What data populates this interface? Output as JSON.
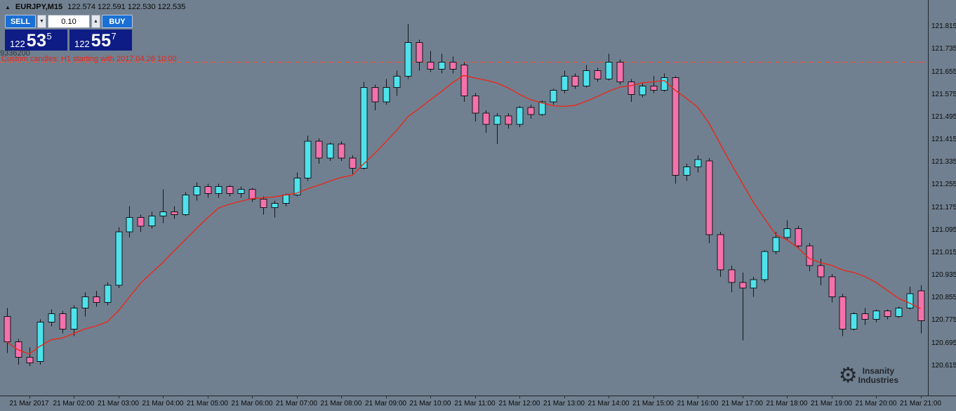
{
  "app": {
    "background": "#708090"
  },
  "header": {
    "icon_glyph": "▲",
    "symbol": "EURJPY,M15",
    "ohlc": "122.574 122.591 122.530 122.535"
  },
  "trade_panel": {
    "sell_label": "SELL",
    "buy_label": "BUY",
    "lot_size": "0.10",
    "spinner_down_icon": "▼",
    "spinner_up_icon": "▲",
    "sell_price": {
      "prefix": "122",
      "big": "53",
      "sup": "5"
    },
    "buy_price": {
      "prefix": "122",
      "big": "55",
      "sup": "7"
    }
  },
  "annotations": {
    "account_number": "9336200",
    "custom_candles_note": "Custom candles: H1 starting with 2017.04.26 10:00",
    "watermark_icon": "⚙",
    "watermark_line1": "Insanity",
    "watermark_line2": "Industries"
  },
  "chart_data": {
    "type": "candlestick",
    "symbol": "EURJPY",
    "timeframe": "M15",
    "ylim": [
      120.51,
      121.91
    ],
    "grid": false,
    "colors": {
      "up": "#4EE2EC",
      "down": "#F571AB",
      "wick": "#15161a"
    },
    "ma": {
      "period": 10,
      "color": "#e8291c"
    },
    "hline": {
      "price": 121.69,
      "color": "#ff5030",
      "style": "dashed"
    },
    "price_axis_labels": [
      "121.815",
      "121.735",
      "121.655",
      "121.575",
      "121.495",
      "121.415",
      "121.335",
      "121.255",
      "121.175",
      "121.095",
      "121.015",
      "120.935",
      "120.855",
      "120.775",
      "120.695",
      "120.615"
    ],
    "time_axis_labels": [
      {
        "text": "21 Mar 2017",
        "t": 1
      },
      {
        "text": "21 Mar 02:00",
        "t": 2
      },
      {
        "text": "21 Mar 03:00",
        "t": 3
      },
      {
        "text": "21 Mar 04:00",
        "t": 4
      },
      {
        "text": "21 Mar 05:00",
        "t": 5
      },
      {
        "text": "21 Mar 06:00",
        "t": 6
      },
      {
        "text": "21 Mar 07:00",
        "t": 7
      },
      {
        "text": "21 Mar 08:00",
        "t": 8
      },
      {
        "text": "21 Mar 09:00",
        "t": 9
      },
      {
        "text": "21 Mar 10:00",
        "t": 10
      },
      {
        "text": "21 Mar 11:00",
        "t": 11
      },
      {
        "text": "21 Mar 12:00",
        "t": 12
      },
      {
        "text": "21 Mar 13:00",
        "t": 13
      },
      {
        "text": "21 Mar 14:00",
        "t": 14
      },
      {
        "text": "21 Mar 15:00",
        "t": 15
      },
      {
        "text": "21 Mar 16:00",
        "t": 16
      },
      {
        "text": "21 Mar 17:00",
        "t": 17
      },
      {
        "text": "21 Mar 18:00",
        "t": 18
      },
      {
        "text": "21 Mar 19:00",
        "t": 19
      },
      {
        "text": "21 Mar 20:00",
        "t": 20
      },
      {
        "text": "21 Mar 21:00",
        "t": 21
      }
    ],
    "candles": [
      [
        0.5,
        120.79,
        120.82,
        120.66,
        120.7
      ],
      [
        0.75,
        120.7,
        120.71,
        120.62,
        120.645
      ],
      [
        1,
        120.645,
        120.68,
        120.615,
        120.625
      ],
      [
        1.25,
        120.63,
        120.78,
        120.62,
        120.77
      ],
      [
        1.5,
        120.77,
        120.815,
        120.755,
        120.8
      ],
      [
        1.75,
        120.8,
        120.81,
        120.73,
        120.745
      ],
      [
        2,
        120.745,
        120.83,
        120.72,
        120.82
      ],
      [
        2.25,
        120.82,
        120.875,
        120.79,
        120.86
      ],
      [
        2.5,
        120.86,
        120.88,
        120.825,
        120.84
      ],
      [
        2.75,
        120.84,
        120.91,
        120.83,
        120.9
      ],
      [
        3,
        120.9,
        121.105,
        120.89,
        121.09
      ],
      [
        3.25,
        121.09,
        121.18,
        121.07,
        121.14
      ],
      [
        3.5,
        121.14,
        121.15,
        121.09,
        121.11
      ],
      [
        3.75,
        121.11,
        121.16,
        121.1,
        121.145
      ],
      [
        4,
        121.145,
        121.24,
        121.12,
        121.16
      ],
      [
        4.25,
        121.16,
        121.18,
        121.135,
        121.15
      ],
      [
        4.5,
        121.15,
        121.23,
        121.145,
        121.22
      ],
      [
        4.75,
        121.22,
        121.265,
        121.2,
        121.25
      ],
      [
        5,
        121.25,
        121.26,
        121.21,
        121.225
      ],
      [
        5.25,
        121.225,
        121.26,
        121.21,
        121.25
      ],
      [
        5.5,
        121.25,
        121.255,
        121.215,
        121.225
      ],
      [
        5.75,
        121.225,
        121.25,
        121.21,
        121.24
      ],
      [
        6,
        121.24,
        121.245,
        121.195,
        121.205
      ],
      [
        6.25,
        121.205,
        121.215,
        121.15,
        121.175
      ],
      [
        6.5,
        121.175,
        121.2,
        121.14,
        121.19
      ],
      [
        6.75,
        121.19,
        121.225,
        121.18,
        121.22
      ],
      [
        7,
        121.22,
        121.3,
        121.215,
        121.28
      ],
      [
        7.25,
        121.28,
        121.43,
        121.27,
        121.41
      ],
      [
        7.5,
        121.41,
        121.42,
        121.33,
        121.35
      ],
      [
        7.75,
        121.35,
        121.405,
        121.34,
        121.4
      ],
      [
        8,
        121.4,
        121.41,
        121.34,
        121.35
      ],
      [
        8.25,
        121.35,
        121.36,
        121.29,
        121.315
      ],
      [
        8.5,
        121.315,
        121.62,
        121.31,
        121.6
      ],
      [
        8.75,
        121.6,
        121.61,
        121.52,
        121.55
      ],
      [
        9,
        121.55,
        121.63,
        121.54,
        121.6
      ],
      [
        9.25,
        121.6,
        121.66,
        121.57,
        121.64
      ],
      [
        9.5,
        121.64,
        121.825,
        121.63,
        121.76
      ],
      [
        9.75,
        121.76,
        121.77,
        121.66,
        121.69
      ],
      [
        10,
        121.69,
        121.73,
        121.655,
        121.665
      ],
      [
        10.25,
        121.665,
        121.72,
        121.65,
        121.69
      ],
      [
        10.5,
        121.69,
        121.71,
        121.65,
        121.665
      ],
      [
        10.75,
        121.68,
        121.69,
        121.55,
        121.57
      ],
      [
        11,
        121.57,
        121.58,
        121.48,
        121.51
      ],
      [
        11.25,
        121.51,
        121.52,
        121.44,
        121.47
      ],
      [
        11.5,
        121.47,
        121.51,
        121.4,
        121.5
      ],
      [
        11.75,
        121.5,
        121.51,
        121.455,
        121.47
      ],
      [
        12,
        121.47,
        121.535,
        121.46,
        121.53
      ],
      [
        12.25,
        121.53,
        121.54,
        121.49,
        121.505
      ],
      [
        12.5,
        121.505,
        121.555,
        121.5,
        121.55
      ],
      [
        12.75,
        121.55,
        121.595,
        121.54,
        121.59
      ],
      [
        13,
        121.59,
        121.66,
        121.58,
        121.64
      ],
      [
        13.25,
        121.64,
        121.65,
        121.595,
        121.605
      ],
      [
        13.5,
        121.605,
        121.68,
        121.6,
        121.66
      ],
      [
        13.75,
        121.66,
        121.67,
        121.62,
        121.63
      ],
      [
        14,
        121.63,
        121.72,
        121.625,
        121.69
      ],
      [
        14.25,
        121.69,
        121.7,
        121.61,
        121.62
      ],
      [
        14.5,
        121.62,
        121.63,
        121.55,
        121.575
      ],
      [
        14.75,
        121.575,
        121.615,
        121.565,
        121.605
      ],
      [
        15,
        121.605,
        121.64,
        121.58,
        121.59
      ],
      [
        15.25,
        121.59,
        121.65,
        121.585,
        121.635
      ],
      [
        15.5,
        121.635,
        121.64,
        121.26,
        121.29
      ],
      [
        15.75,
        121.29,
        121.33,
        121.27,
        121.32
      ],
      [
        16,
        121.32,
        121.36,
        121.3,
        121.345
      ],
      [
        16.25,
        121.34,
        121.35,
        121.05,
        121.08
      ],
      [
        16.5,
        121.08,
        121.09,
        120.93,
        120.955
      ],
      [
        16.75,
        120.955,
        120.97,
        120.875,
        120.91
      ],
      [
        17,
        120.91,
        120.945,
        120.705,
        120.89
      ],
      [
        17.25,
        120.89,
        120.93,
        120.86,
        120.92
      ],
      [
        17.5,
        120.92,
        121.025,
        120.91,
        121.02
      ],
      [
        17.75,
        121.02,
        121.09,
        121.01,
        121.07
      ],
      [
        18,
        121.07,
        121.13,
        121.06,
        121.1
      ],
      [
        18.25,
        121.1,
        121.11,
        121.03,
        121.04
      ],
      [
        18.5,
        121.04,
        121.05,
        120.95,
        120.97
      ],
      [
        18.75,
        120.97,
        120.995,
        120.9,
        120.93
      ],
      [
        19,
        120.93,
        120.94,
        120.84,
        120.86
      ],
      [
        19.25,
        120.86,
        120.87,
        120.72,
        120.745
      ],
      [
        19.5,
        120.745,
        120.805,
        120.74,
        120.8
      ],
      [
        19.75,
        120.8,
        120.82,
        120.76,
        120.78
      ],
      [
        20,
        120.78,
        120.815,
        120.77,
        120.81
      ],
      [
        20.25,
        120.81,
        120.815,
        120.78,
        120.79
      ],
      [
        20.5,
        120.79,
        120.825,
        120.785,
        120.82
      ],
      [
        20.75,
        120.82,
        120.895,
        120.815,
        120.87
      ],
      [
        21,
        120.88,
        120.9,
        120.73,
        120.775
      ]
    ]
  }
}
